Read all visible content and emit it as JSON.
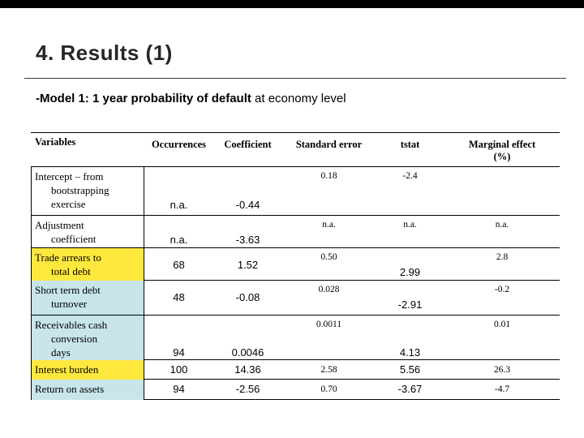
{
  "slide": {
    "title": "4. Results (1)",
    "subtitle_bold": "-Model 1: 1 year probability of default",
    "subtitle_rest": " at economy level"
  },
  "colors": {
    "top_bar": "#000000",
    "highlight_yellow": "#ffe83e",
    "highlight_cyan": "#c7e5ea"
  },
  "table": {
    "headers": {
      "variables": "Variables",
      "occurrences": "Occurrences",
      "coefficient": "Coefficient",
      "std_error": "Standard error",
      "tstat": "tstat",
      "marginal_line1": "Marginal effect",
      "marginal_line2": "(%)"
    },
    "rows": [
      {
        "variable": "Intercept – from bootstrapping exercise",
        "occurrences": "n.a.",
        "coefficient": "-0.44",
        "std_error": "0.18",
        "tstat": "-2.4",
        "marginal": "",
        "highlight": ""
      },
      {
        "variable": "Adjustment coefficient",
        "occurrences": "n.a.",
        "coefficient": "-3.63",
        "std_error": "n.a.",
        "tstat": "n.a.",
        "marginal": "n.a.",
        "highlight": ""
      },
      {
        "variable": "Trade arrears to total debt",
        "occurrences": "68",
        "coefficient": "1.52",
        "std_error": "0.50",
        "tstat": "2.99",
        "marginal": "2.8",
        "highlight": "#ffe83e"
      },
      {
        "variable": "Short term debt turnover",
        "occurrences": "48",
        "coefficient": "-0.08",
        "std_error": "0.028",
        "tstat": "-2.91",
        "marginal": "-0.2",
        "highlight": "#c7e5ea"
      },
      {
        "variable": "Receivables cash conversion days",
        "occurrences": "94",
        "coefficient": "0.0046",
        "std_error": "0.0011",
        "tstat": "4.13",
        "marginal": "0.01",
        "highlight": "#c7e5ea"
      },
      {
        "variable": "Interest burden",
        "occurrences": "100",
        "coefficient": "14.36",
        "std_error": "2.58",
        "tstat": "5.56",
        "marginal": "26.3",
        "highlight": "#ffe83e"
      },
      {
        "variable": "Return on assets",
        "occurrences": "94",
        "coefficient": "-2.56",
        "std_error": "0.70",
        "tstat": "-3.67",
        "marginal": "-4.7",
        "highlight": "#c7e5ea"
      }
    ]
  }
}
